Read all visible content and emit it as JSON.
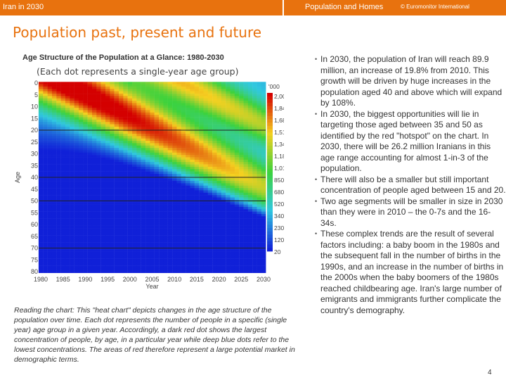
{
  "header": {
    "left": "Iran in 2030",
    "middle": "Population and Homes",
    "right": "© Euromonitor International"
  },
  "slide": {
    "title": "Population past, present and future",
    "page_number": "4"
  },
  "chart_data": {
    "type": "heatmap",
    "title": "Age Structure of the Population at a Glance: 1980-2030",
    "subtitle": "(Each dot represents a single-year age group)",
    "xlabel": "Year",
    "ylabel": "Age",
    "x_ticks": [
      "1980",
      "1985",
      "1990",
      "1995",
      "2000",
      "2005",
      "2010",
      "2015",
      "2020",
      "2025",
      "2030"
    ],
    "xlim": [
      1980,
      2030
    ],
    "y_ticks": [
      "0",
      "5",
      "10",
      "15",
      "20",
      "25",
      "30",
      "35",
      "40",
      "45",
      "50",
      "55",
      "60",
      "65",
      "70",
      "75",
      "80"
    ],
    "ylim": [
      0,
      80
    ],
    "colorbar_unit": "'000",
    "colorbar_labels": [
      "2,003",
      "1,840",
      "1,680",
      "1,510",
      "1,340",
      "1,180",
      "1,010",
      "850",
      "680",
      "520",
      "340",
      "230",
      "120",
      "20"
    ],
    "reference_lines_age": [
      20,
      40,
      50,
      70
    ],
    "colors": {
      "high": "#d40000",
      "mid_high": "#f5d020",
      "mid": "#3cd23c",
      "mid_low": "#30c8e0",
      "low": "#1020d8"
    }
  },
  "reading_note": "Reading the chart: This \"heat chart\" depicts changes in the age structure of the population over time. Each dot represents the  number of people in a specific (single year) age group in a given year. Accordingly, a dark red dot shows the largest concentration of people, by age, in a particular year while deep blue dots refer to the lowest concentrations. The areas of red therefore represent a large potential market in demographic terms.",
  "bullets": [
    "In 2030, the population of Iran will reach 89.9 million, an increase of 19.8% from 2010. This growth will be driven by huge increases in the population aged 40 and above which will expand by 108%.",
    "In 2030, the biggest opportunities will lie in targeting those aged between 35 and 50 as identified by the red \"hotspot\" on the chart. In 2030, there will be 26.2 million Iranians in this age range accounting for almost 1-in-3 of the population.",
    "There will also be a smaller but still important concentration of people aged between 15 and 20.",
    "Two age segments will be smaller in size in 2030 than they were in 2010 – the 0-7s and the 16-34s.",
    "These complex trends are the result of several factors including: a baby boom in the 1980s and the subsequent fall in the number of births in the 1990s, and an increase in the number of births in the 2000s when the baby boomers of the 1980s reached childbearing age. Iran's large number of emigrants and immigrants further complicate the country's demography."
  ],
  "bullet_glyph": "•"
}
